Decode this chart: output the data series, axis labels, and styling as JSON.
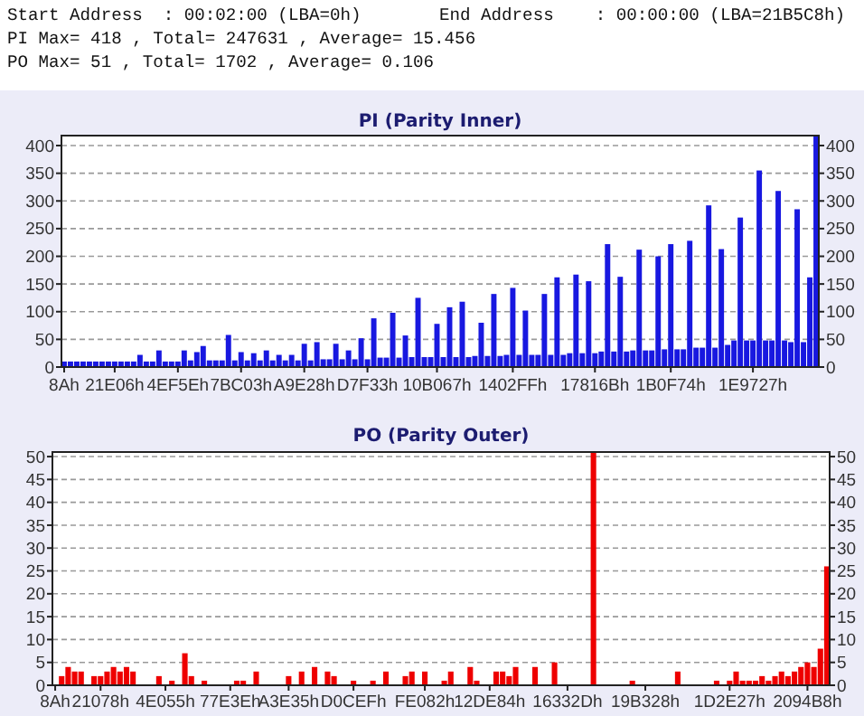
{
  "chart_data": [
    {
      "type": "other",
      "annotations": [
        "Start Address  : 00:02:00 (LBA=0h)",
        "End Address    : 00:00:00 (LBA=21B5C8h)",
        "PI Max= 418 , Total= 247631 , Average= 15.456",
        "PO Max= 51 , Total= 1702 , Average= 0.106"
      ]
    },
    {
      "type": "bar",
      "title": "PI (Parity Inner)",
      "grid": "y",
      "ylim": [
        0,
        418
      ],
      "y2lim": [
        0,
        418
      ],
      "yticks": [
        0,
        50,
        100,
        150,
        200,
        250,
        300,
        350,
        400
      ],
      "y2ticks": [
        0,
        50,
        100,
        150,
        200,
        250,
        300,
        350,
        400
      ],
      "categories": [
        "8Ah",
        null,
        null,
        null,
        null,
        null,
        null,
        null,
        "21E06h",
        null,
        null,
        null,
        null,
        null,
        null,
        null,
        null,
        null,
        "4EF5Eh",
        null,
        null,
        null,
        null,
        null,
        null,
        null,
        null,
        null,
        "7BC03h",
        null,
        null,
        null,
        null,
        null,
        null,
        null,
        null,
        null,
        "A9E28h",
        null,
        null,
        null,
        null,
        null,
        null,
        null,
        null,
        null,
        "D7F33h",
        null,
        null,
        null,
        null,
        null,
        null,
        null,
        null,
        null,
        null,
        "10B067h",
        null,
        null,
        null,
        null,
        null,
        null,
        null,
        null,
        null,
        null,
        null,
        "1402FFh",
        null,
        null,
        null,
        null,
        null,
        null,
        null,
        null,
        null,
        null,
        null,
        null,
        "17816Bh",
        null,
        null,
        null,
        null,
        null,
        null,
        null,
        null,
        null,
        null,
        null,
        "1B0F74h",
        null,
        null,
        null,
        null,
        null,
        null,
        null,
        null,
        null,
        null,
        null,
        null,
        "1E9727h",
        null,
        null,
        null,
        null,
        null,
        null,
        null,
        null,
        null,
        null
      ],
      "color": "#1818e0",
      "values": [
        10,
        10,
        10,
        10,
        10,
        10,
        10,
        10,
        10,
        10,
        10,
        10,
        22,
        10,
        10,
        30,
        10,
        10,
        10,
        30,
        12,
        27,
        38,
        12,
        12,
        12,
        58,
        12,
        27,
        12,
        25,
        12,
        30,
        12,
        22,
        12,
        22,
        12,
        42,
        12,
        45,
        14,
        14,
        42,
        14,
        30,
        14,
        52,
        14,
        88,
        17,
        17,
        98,
        17,
        57,
        18,
        125,
        18,
        18,
        78,
        18,
        108,
        18,
        118,
        18,
        20,
        80,
        20,
        132,
        20,
        22,
        143,
        22,
        102,
        22,
        22,
        132,
        22,
        162,
        22,
        25,
        167,
        25,
        155,
        25,
        28,
        222,
        28,
        163,
        28,
        30,
        212,
        30,
        30,
        200,
        32,
        222,
        32,
        32,
        228,
        35,
        35,
        292,
        35,
        213,
        40,
        48,
        270,
        48,
        48,
        355,
        48,
        48,
        318,
        48,
        45,
        285,
        45,
        162,
        418
      ]
    },
    {
      "type": "bar",
      "title": "PO (Parity Outer)",
      "grid": "y",
      "ylim": [
        0,
        51
      ],
      "y2lim": [
        0,
        51
      ],
      "yticks": [
        0,
        5,
        10,
        15,
        20,
        25,
        30,
        35,
        40,
        45,
        50
      ],
      "y2ticks": [
        0,
        5,
        10,
        15,
        20,
        25,
        30,
        35,
        40,
        45,
        50
      ],
      "categories": [
        "8Ah",
        null,
        null,
        null,
        null,
        null,
        null,
        "21078h",
        null,
        null,
        null,
        null,
        null,
        null,
        null,
        null,
        null,
        "4E055h",
        null,
        null,
        null,
        null,
        null,
        null,
        null,
        null,
        null,
        "77E3Eh",
        null,
        null,
        null,
        null,
        null,
        null,
        null,
        null,
        "A3E35h",
        null,
        null,
        null,
        null,
        null,
        null,
        null,
        null,
        null,
        "D0CEFh",
        null,
        null,
        null,
        null,
        null,
        null,
        null,
        null,
        null,
        null,
        "FE082h",
        null,
        null,
        null,
        null,
        null,
        null,
        null,
        null,
        null,
        "12DE84h",
        null,
        null,
        null,
        null,
        null,
        null,
        null,
        null,
        null,
        null,
        null,
        "16332Dh",
        null,
        null,
        null,
        null,
        null,
        null,
        null,
        null,
        null,
        null,
        null,
        "19B328h",
        null,
        null,
        null,
        null,
        null,
        null,
        null,
        null,
        null,
        null,
        null,
        null,
        "1D2E27h",
        null,
        null,
        null,
        null,
        null,
        null,
        null,
        null,
        null,
        null,
        null,
        "2094B8h",
        null,
        null,
        null
      ],
      "color": "#ee0000",
      "values": [
        0,
        2,
        4,
        3,
        3,
        0,
        2,
        2,
        3,
        4,
        3,
        4,
        3,
        0,
        0,
        0,
        2,
        0,
        1,
        0,
        7,
        2,
        0,
        1,
        0,
        0,
        0,
        0,
        1,
        1,
        0,
        3,
        0,
        0,
        0,
        0,
        2,
        0,
        3,
        0,
        4,
        0,
        3,
        2,
        0,
        0,
        1,
        0,
        0,
        1,
        0,
        3,
        0,
        0,
        2,
        3,
        0,
        3,
        0,
        0,
        1,
        3,
        0,
        0,
        4,
        1,
        0,
        0,
        3,
        3,
        2,
        4,
        0,
        0,
        4,
        0,
        0,
        5,
        0,
        0,
        0,
        0,
        0,
        51,
        0,
        0,
        0,
        0,
        0,
        1,
        0,
        0,
        0,
        0,
        0,
        0,
        3,
        0,
        0,
        0,
        0,
        0,
        1,
        0,
        1,
        3,
        1,
        1,
        1,
        2,
        1,
        2,
        3,
        2,
        3,
        4,
        5,
        4,
        8,
        26
      ]
    }
  ]
}
